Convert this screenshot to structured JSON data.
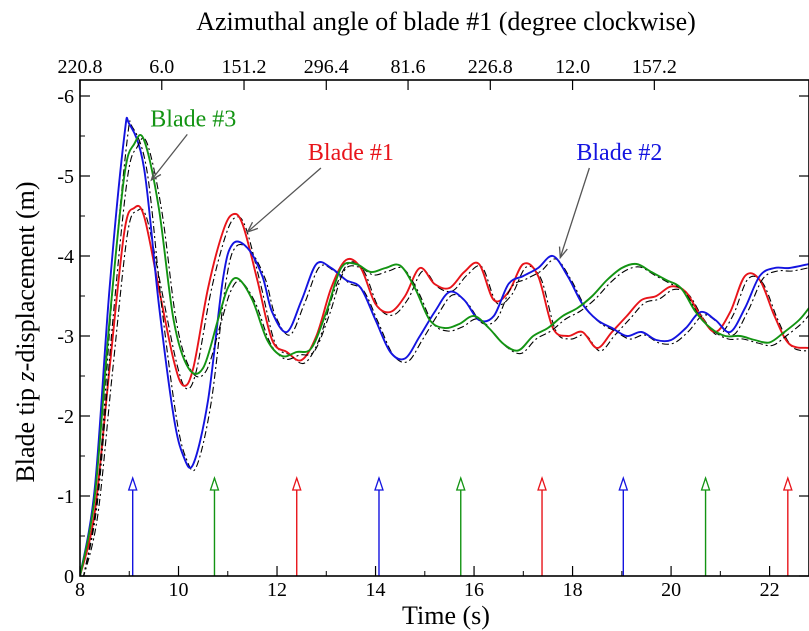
{
  "chart_data": {
    "type": "line",
    "top_axis_title": "Azimuthal angle of blade #1 (degree clockwise)",
    "xlabel": "Time (s)",
    "ylabel_prefix": "Blade tip ",
    "ylabel_var": "z",
    "ylabel_suffix": "-displacement (m)",
    "xlim": [
      8,
      22.8
    ],
    "ylim": [
      0,
      -6.2
    ],
    "x_ticks": [
      "8",
      "10",
      "12",
      "14",
      "16",
      "18",
      "20",
      "22"
    ],
    "x_tick_values": [
      8,
      10,
      12,
      14,
      16,
      18,
      20,
      22
    ],
    "y_ticks": [
      "0",
      "-1",
      "-2",
      "-3",
      "-4",
      "-5",
      "-6"
    ],
    "y_tick_values": [
      0,
      -1,
      -2,
      -3,
      -4,
      -5,
      -6
    ],
    "top_ticks": [
      "220.8",
      "6.0",
      "151.2",
      "296.4",
      "81.6",
      "226.8",
      "12.0",
      "157.2"
    ],
    "top_tick_values": [
      8,
      9.66,
      11.33,
      13.0,
      14.66,
      16.33,
      18.0,
      19.66
    ],
    "grid": false,
    "colors": {
      "blade1": "#e8141a",
      "blade2": "#1414e0",
      "blade3": "#139413",
      "reference": "#000000"
    },
    "series": [
      {
        "name": "Blade #1",
        "color": "#e8141a",
        "x": [
          8,
          8.3,
          8.6,
          8.9,
          9.1,
          9.3,
          9.6,
          9.9,
          10.1,
          10.3,
          10.6,
          10.9,
          11.1,
          11.3,
          11.6,
          11.9,
          12.2,
          12.5,
          12.8,
          13.1,
          13.4,
          13.7,
          14.0,
          14.3,
          14.6,
          14.9,
          15.2,
          15.5,
          15.8,
          16.1,
          16.4,
          16.7,
          17.0,
          17.3,
          17.6,
          17.9,
          18.2,
          18.5,
          18.8,
          19.1,
          19.4,
          19.7,
          20.0,
          20.3,
          20.6,
          20.9,
          21.2,
          21.5,
          21.8,
          22.1,
          22.4,
          22.8
        ],
        "y": [
          0,
          -0.8,
          -2.6,
          -4.3,
          -4.6,
          -4.5,
          -3.6,
          -2.7,
          -2.38,
          -2.6,
          -3.6,
          -4.3,
          -4.52,
          -4.4,
          -3.7,
          -2.95,
          -2.8,
          -2.7,
          -3.0,
          -3.6,
          -3.95,
          -3.85,
          -3.4,
          -3.3,
          -3.5,
          -3.85,
          -3.65,
          -3.6,
          -3.8,
          -3.9,
          -3.45,
          -3.55,
          -3.9,
          -3.75,
          -3.1,
          -3.0,
          -3.05,
          -2.85,
          -3.05,
          -3.25,
          -3.45,
          -3.5,
          -3.62,
          -3.55,
          -3.25,
          -3.05,
          -3.3,
          -3.75,
          -3.7,
          -3.25,
          -2.9,
          -2.85
        ]
      },
      {
        "name": "Blade #2",
        "color": "#1414e0",
        "x": [
          8,
          8.3,
          8.6,
          8.9,
          9.0,
          9.3,
          9.6,
          9.9,
          10.1,
          10.3,
          10.6,
          10.9,
          11.1,
          11.4,
          11.7,
          11.9,
          12.2,
          12.5,
          12.8,
          13.1,
          13.4,
          13.7,
          14.0,
          14.3,
          14.6,
          14.9,
          15.2,
          15.5,
          15.8,
          16.1,
          16.4,
          16.7,
          17.0,
          17.3,
          17.6,
          17.9,
          18.2,
          18.5,
          18.8,
          19.1,
          19.4,
          19.7,
          20.0,
          20.3,
          20.6,
          20.9,
          21.2,
          21.5,
          21.8,
          22.1,
          22.4,
          22.8
        ],
        "y": [
          0,
          -1.1,
          -3.6,
          -5.5,
          -5.65,
          -5.1,
          -3.4,
          -2.0,
          -1.5,
          -1.4,
          -2.2,
          -3.7,
          -4.15,
          -4.1,
          -3.75,
          -3.3,
          -3.05,
          -3.45,
          -3.9,
          -3.85,
          -3.7,
          -3.6,
          -3.2,
          -2.8,
          -2.72,
          -3.0,
          -3.3,
          -3.55,
          -3.45,
          -3.2,
          -3.25,
          -3.65,
          -3.75,
          -3.85,
          -4.0,
          -3.75,
          -3.4,
          -3.2,
          -3.1,
          -3.0,
          -3.05,
          -2.95,
          -2.95,
          -3.1,
          -3.3,
          -3.2,
          -3.05,
          -3.35,
          -3.75,
          -3.85,
          -3.85,
          -3.9
        ]
      },
      {
        "name": "Blade #3",
        "color": "#139413",
        "x": [
          8,
          8.3,
          8.6,
          8.9,
          9.1,
          9.3,
          9.6,
          9.9,
          10.2,
          10.5,
          10.8,
          11.0,
          11.2,
          11.5,
          11.8,
          12.1,
          12.4,
          12.7,
          13.0,
          13.3,
          13.6,
          13.9,
          14.2,
          14.5,
          14.8,
          15.1,
          15.4,
          15.7,
          16.0,
          16.3,
          16.6,
          16.9,
          17.2,
          17.5,
          17.8,
          18.1,
          18.4,
          18.7,
          19.0,
          19.3,
          19.6,
          19.9,
          20.2,
          20.5,
          20.8,
          21.1,
          21.4,
          21.7,
          22.0,
          22.3,
          22.6,
          22.8
        ],
        "y": [
          0,
          -1.0,
          -3.2,
          -5.0,
          -5.4,
          -5.45,
          -4.6,
          -3.2,
          -2.6,
          -2.6,
          -3.2,
          -3.6,
          -3.72,
          -3.45,
          -2.95,
          -2.75,
          -2.8,
          -2.85,
          -3.3,
          -3.85,
          -3.9,
          -3.8,
          -3.85,
          -3.88,
          -3.6,
          -3.2,
          -3.1,
          -3.15,
          -3.25,
          -3.1,
          -2.9,
          -2.82,
          -3.0,
          -3.1,
          -3.25,
          -3.35,
          -3.5,
          -3.7,
          -3.85,
          -3.9,
          -3.8,
          -3.7,
          -3.6,
          -3.3,
          -3.1,
          -3.0,
          -3.0,
          -2.95,
          -2.92,
          -3.05,
          -3.2,
          -3.35
        ]
      }
    ],
    "annotations": [
      {
        "text": "Blade #1",
        "color": "#e8141a",
        "label_x": 13.5,
        "label_y": -5.2,
        "arrow_to_x": 11.4,
        "arrow_to_y": -4.3
      },
      {
        "text": "Blade #2",
        "color": "#1414e0",
        "label_x": 18.95,
        "label_y": -5.2,
        "arrow_to_x": 17.75,
        "arrow_to_y": -3.98
      },
      {
        "text": "Blade #3",
        "color": "#139413",
        "label_x": 10.3,
        "label_y": -5.62,
        "arrow_to_x": 9.45,
        "arrow_to_y": -4.95
      }
    ],
    "markers": [
      {
        "x": 9.07,
        "color": "#1414e0"
      },
      {
        "x": 10.73,
        "color": "#139413"
      },
      {
        "x": 12.4,
        "color": "#e8141a"
      },
      {
        "x": 14.07,
        "color": "#1414e0"
      },
      {
        "x": 15.73,
        "color": "#139413"
      },
      {
        "x": 17.38,
        "color": "#e8141a"
      },
      {
        "x": 19.03,
        "color": "#1414e0"
      },
      {
        "x": 20.7,
        "color": "#139413"
      },
      {
        "x": 22.37,
        "color": "#e8141a"
      }
    ]
  }
}
